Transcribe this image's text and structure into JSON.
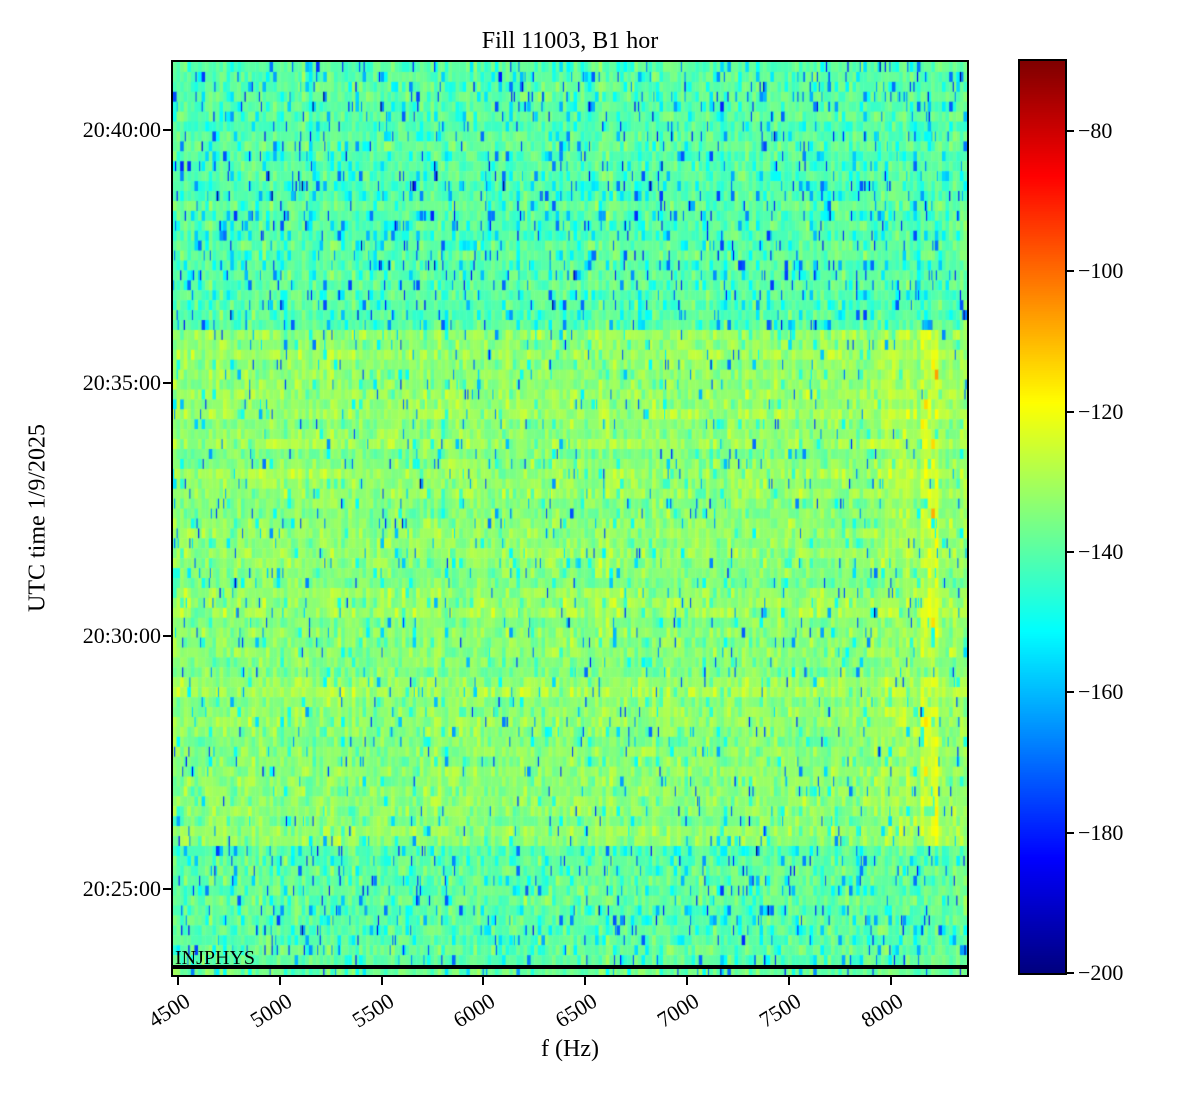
{
  "chart_data": {
    "type": "heatmap",
    "title": "Fill 11003, B1 hor",
    "xlabel": "f (Hz)",
    "ylabel": "UTC time 1/9/2025",
    "x_unit": "Hz",
    "x_range": [
      4475,
      8375
    ],
    "x_ticks": [
      4500,
      5000,
      5500,
      6000,
      6500,
      7000,
      7500,
      8000
    ],
    "y_ticks": [
      "20:40:00",
      "20:35:00",
      "20:30:00",
      "20:25:00"
    ],
    "y_range_top_to_bottom": [
      "20:41:21",
      "20:23:18"
    ],
    "grid": false,
    "colorbar": {
      "colormap": "jet",
      "vmin": -200,
      "vmax": -70,
      "ticks": [
        -80,
        -100,
        -120,
        -140,
        -160,
        -180,
        -200
      ],
      "tick_labels": [
        "−80",
        "−100",
        "−120",
        "−140",
        "−160",
        "−180",
        "−200"
      ]
    },
    "annotations": [
      {
        "text": "INJPHYS",
        "time": "20:23:27",
        "style": "horizontal-black-line-with-label"
      }
    ],
    "regions": [
      {
        "time_from": "20:36:02",
        "time_to": "20:41:21",
        "mean_db": -139.5,
        "description": "quieter cyan-green broadband noise"
      },
      {
        "time_from": "20:25:52",
        "time_to": "20:36:02",
        "mean_db": -133.0,
        "description": "louder yellow-green broadband noise"
      },
      {
        "time_from": "20:23:27",
        "time_to": "20:25:52",
        "mean_db": -139.0,
        "description": "quieter cyan-green broadband noise"
      },
      {
        "feature": "enhanced-vertical-band",
        "f_from": 8140,
        "f_to": 8240,
        "mean_db": -125,
        "time_from": "20:25:52",
        "time_to": "20:36:02",
        "description": "yellow band with sparse orange hot cells near 8.2 kHz"
      }
    ],
    "noise_model": {
      "seed": 11003,
      "cols": 222,
      "rows": 92,
      "col_sigma": 0.9,
      "bands": [
        {
          "from": "20:36:02",
          "to": "20:41:30",
          "mean": -139.5,
          "sigma": 3.1,
          "row_sigma": 1.0,
          "p_cyan": 0.13,
          "p_blue": 0.035,
          "p_streak": 0.1
        },
        {
          "from": "20:25:52",
          "to": "20:36:02",
          "mean": -133.2,
          "sigma": 3.3,
          "row_sigma": 1.2,
          "p_cyan": 0.06,
          "p_blue": 0.012,
          "p_streak": 0.06
        },
        {
          "from": "20:23:00",
          "to": "20:25:52",
          "mean": -138.8,
          "sigma": 3.1,
          "row_sigma": 1.0,
          "p_cyan": 0.12,
          "p_blue": 0.03,
          "p_streak": 0.09
        }
      ],
      "features": [
        {
          "band": 1,
          "f_from": 8140,
          "f_to": 8240,
          "boost_db": 8.5,
          "p_hot": 0.05,
          "hot_boost": 13
        },
        {
          "band": 1,
          "f_from": 7950,
          "f_to": 8140,
          "boost_db": 2.2
        },
        {
          "band": 1,
          "f_from": 8240,
          "f_to": 8330,
          "boost_db": 1.5
        }
      ]
    }
  }
}
